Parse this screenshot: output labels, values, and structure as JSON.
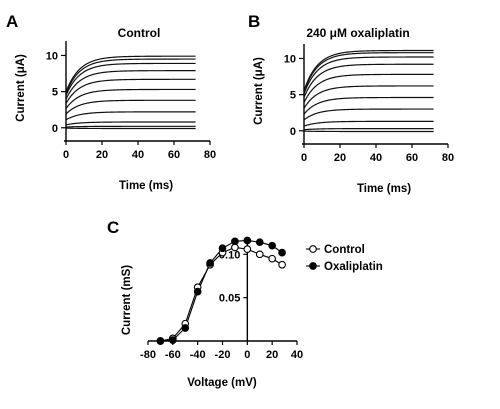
{
  "chart_data": [
    {
      "type": "line",
      "panel": "A",
      "title": "Control",
      "xlabel": "Time (ms)",
      "ylabel": "Current (μA)",
      "xlim": [
        0,
        80
      ],
      "ylim": [
        -1,
        12
      ],
      "x_ticks": [
        "0",
        "20",
        "40",
        "60",
        "80"
      ],
      "y_ticks": [
        "0",
        "5",
        "10"
      ],
      "trace_time_range_ms": [
        0,
        72
      ],
      "series": [
        {
          "steady_state": -0.1
        },
        {
          "steady_state": 0.2
        },
        {
          "steady_state": 0.8
        },
        {
          "steady_state": 2.2
        },
        {
          "steady_state": 3.8
        },
        {
          "steady_state": 5.3
        },
        {
          "steady_state": 6.7
        },
        {
          "steady_state": 7.9
        },
        {
          "steady_state": 8.9
        },
        {
          "steady_state": 9.5
        },
        {
          "steady_state": 9.9
        }
      ],
      "grid": false
    },
    {
      "type": "line",
      "panel": "B",
      "title": "240 μM oxaliplatin",
      "xlabel": "Time (ms)",
      "ylabel": "Current (μA)",
      "xlim": [
        0,
        80
      ],
      "ylim": [
        -1,
        12
      ],
      "x_ticks": [
        "0",
        "20",
        "40",
        "60",
        "80"
      ],
      "y_ticks": [
        "0",
        "5",
        "10"
      ],
      "trace_time_range_ms": [
        0,
        72
      ],
      "series": [
        {
          "steady_state": -0.1
        },
        {
          "steady_state": 0.3
        },
        {
          "steady_state": 1.3
        },
        {
          "steady_state": 3.0
        },
        {
          "steady_state": 4.6
        },
        {
          "steady_state": 6.2
        },
        {
          "steady_state": 7.8
        },
        {
          "steady_state": 9.2
        },
        {
          "steady_state": 10.2
        },
        {
          "steady_state": 10.8
        },
        {
          "steady_state": 11.1
        }
      ],
      "grid": false
    },
    {
      "type": "line",
      "panel": "C",
      "xlabel": "Voltage (mV)",
      "ylabel": "Current (mS)",
      "xlim": [
        -80,
        40
      ],
      "ylim": [
        0,
        0.12
      ],
      "x_ticks": [
        "-80",
        "-60",
        "-40",
        "-20",
        "0",
        "20",
        "40"
      ],
      "y_ticks": [
        "0.05",
        "0.10"
      ],
      "legend_position": "right",
      "series": [
        {
          "name": "Control",
          "marker": "open-circle",
          "x": [
            -70,
            -60,
            -50,
            -40,
            -30,
            -20,
            -10,
            0,
            10,
            20,
            28
          ],
          "y": [
            0.0,
            0.003,
            0.02,
            0.062,
            0.088,
            0.102,
            0.108,
            0.106,
            0.1,
            0.095,
            0.088
          ]
        },
        {
          "name": "Oxaliplatin",
          "marker": "filled-circle",
          "x": [
            -70,
            -60,
            -50,
            -40,
            -30,
            -20,
            -10,
            0,
            10,
            20,
            28
          ],
          "y": [
            0.0,
            0.001,
            0.015,
            0.057,
            0.09,
            0.107,
            0.115,
            0.116,
            0.114,
            0.11,
            0.102
          ]
        }
      ],
      "grid": false
    }
  ]
}
